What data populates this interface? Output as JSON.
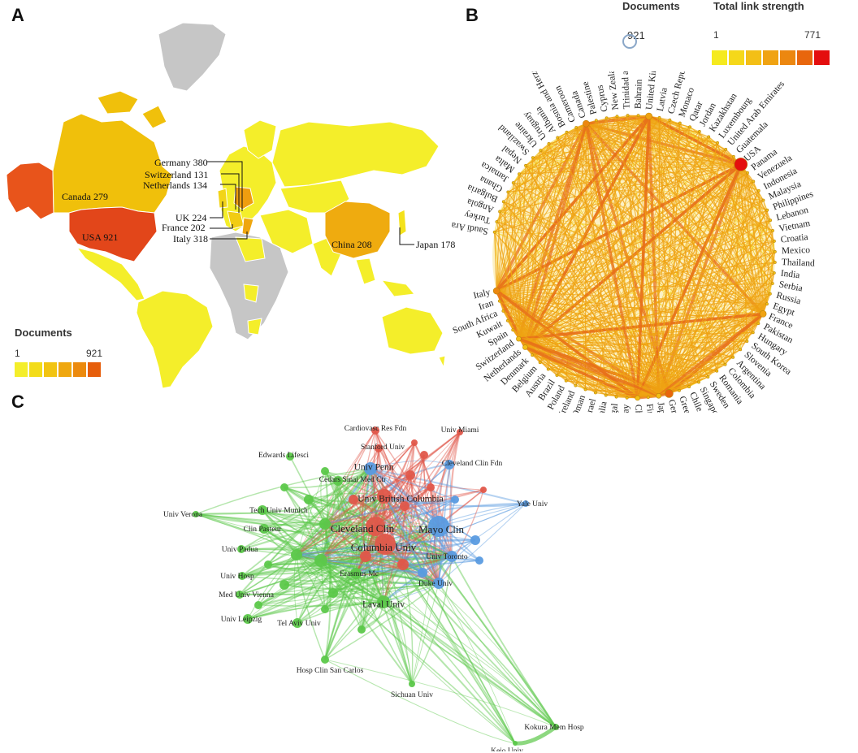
{
  "panel_letters": [
    "A",
    "B",
    "C"
  ],
  "panel_a": {
    "legend_title": "Documents",
    "legend_min": "1",
    "legend_max": "921",
    "scale_colors": [
      "#f2f22a",
      "#f3dc1a",
      "#f2c411",
      "#efa70f",
      "#ec8a0d",
      "#e65e0b"
    ],
    "labels": [
      {
        "text": "Canada 279"
      },
      {
        "text": "USA 921"
      },
      {
        "text": "Germany 380"
      },
      {
        "text": "Switzerland 131"
      },
      {
        "text": "Netherlands 134"
      },
      {
        "text": "UK 224"
      },
      {
        "text": "France 202"
      },
      {
        "text": "Italy 318"
      },
      {
        "text": "China 208"
      },
      {
        "text": "Japan 178"
      }
    ]
  },
  "panel_b": {
    "documents_title": "Documents",
    "documents_value": "921",
    "strength_title": "Total link strength",
    "strength_min": "1",
    "strength_max": "771",
    "scale_colors": [
      "#f5ea1e",
      "#f5d81a",
      "#f3bf16",
      "#f0a312",
      "#ec8710",
      "#e8660d",
      "#e40e0e"
    ],
    "countries": [
      "Saudi Arabia",
      "Turkey",
      "Angola",
      "Bulgaria",
      "Ghana",
      "Jamaica",
      "Malta",
      "Nepal",
      "Swaziland",
      "Ukraine",
      "Uruguay",
      "Albania",
      "Bosnia and Herzegovina",
      "Cameroon",
      "Canada",
      "Palestine",
      "Cyprus",
      "New Zealand",
      "Trinidad and Tobago",
      "Bahrain",
      "United Kingdom",
      "Latvia",
      "Czech Republic",
      "Monaco",
      "Qatar",
      "Jordan",
      "Kazakhstan",
      "Luxembourg",
      "United Arab Emirates",
      "Guatemala",
      "USA",
      "Panama",
      "Venezuela",
      "Indonesia",
      "Malaysia",
      "Philippines",
      "Lebanon",
      "Vietnam",
      "Croatia",
      "Mexico",
      "Thailand",
      "India",
      "Serbia",
      "Russia",
      "Egypt",
      "France",
      "Pakistan",
      "Hungary",
      "South Korea",
      "Slovenia",
      "Argentina",
      "Colombia",
      "Romania",
      "Sweden",
      "Singapore",
      "Chile",
      "Greece",
      "Germany",
      "Japan",
      "Finland",
      "China",
      "Norway",
      "Portugal",
      "Australia",
      "Israel",
      "Oman",
      "Ireland",
      "Poland",
      "Brazil",
      "Austria",
      "Belgium",
      "Denmark",
      "Netherlands",
      "Switzerland",
      "Spain",
      "Kuwait",
      "South Africa",
      "Iran",
      "Italy"
    ]
  },
  "panel_c": {
    "nodes": [
      {
        "label": "Cardiovasc Res Fdn",
        "cluster": "red"
      },
      {
        "label": "Univ Miami",
        "cluster": "red"
      },
      {
        "label": "Stanford Univ",
        "cluster": "red"
      },
      {
        "label": "Edwards Lifesci",
        "cluster": "green"
      },
      {
        "label": "Univ Penn",
        "cluster": "blue"
      },
      {
        "label": "Cleveland Clin Fdn",
        "cluster": "blue"
      },
      {
        "label": "Cedars Sinai Med Ctr",
        "cluster": "green"
      },
      {
        "label": "Univ British Columbia",
        "cluster": "red"
      },
      {
        "label": "Yale Univ",
        "cluster": "blue"
      },
      {
        "label": "Univ Verona",
        "cluster": "green"
      },
      {
        "label": "Tech Univ Munich",
        "cluster": "green"
      },
      {
        "label": "Clin Pasteur",
        "cluster": "green"
      },
      {
        "label": "Cleveland Clin",
        "cluster": "red"
      },
      {
        "label": "Mayo Clin",
        "cluster": "blue"
      },
      {
        "label": "Columbia Univ",
        "cluster": "red"
      },
      {
        "label": "Univ Padua",
        "cluster": "green"
      },
      {
        "label": "Univ Toronto",
        "cluster": "blue"
      },
      {
        "label": "Univ Hosp",
        "cluster": "green"
      },
      {
        "label": "Erasmus Mc",
        "cluster": "green"
      },
      {
        "label": "Duke Univ",
        "cluster": "blue"
      },
      {
        "label": "Med Univ Vienna",
        "cluster": "green"
      },
      {
        "label": "Laval Univ",
        "cluster": "green"
      },
      {
        "label": "Univ Leipzig",
        "cluster": "green"
      },
      {
        "label": "Tel Aviv Univ",
        "cluster": "green"
      },
      {
        "label": "Hosp Clin San Carlos",
        "cluster": "green"
      },
      {
        "label": "Sichuan Univ",
        "cluster": "green"
      },
      {
        "label": "Kokura Mem Hosp",
        "cluster": "green"
      },
      {
        "label": "Keio Univ",
        "cluster": "green"
      }
    ],
    "cluster_colors": {
      "red": "#e0574a",
      "green": "#5cc84a",
      "blue": "#5a9be0"
    }
  }
}
